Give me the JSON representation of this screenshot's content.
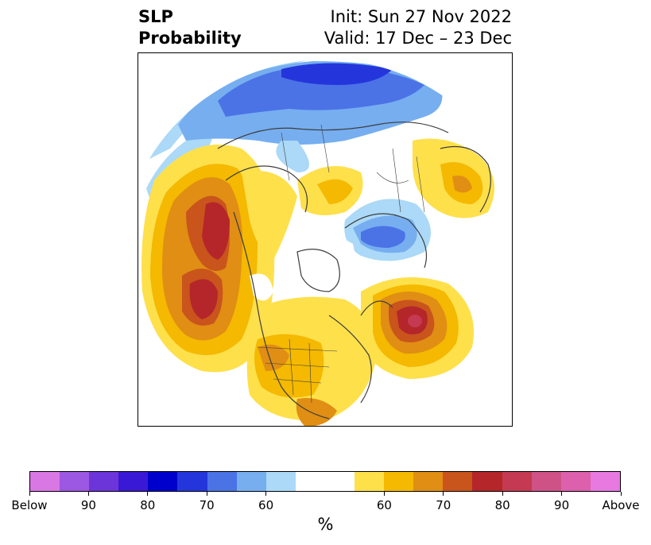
{
  "header": {
    "left_line1": "SLP",
    "left_line2": "Probability",
    "right_line1": "Init: Sun 27 Nov 2022",
    "right_line2": "Valid: 17 Dec – 23 Dec"
  },
  "colorbar": {
    "colors": [
      "#d977e5",
      "#9c58e2",
      "#6b35da",
      "#3a19d6",
      "#0000cc",
      "#2436db",
      "#4b73e6",
      "#76aef0",
      "#abd9f7",
      "#ffffff",
      "#ffffff",
      "#fee04b",
      "#f4b900",
      "#e08e14",
      "#c9541c",
      "#b4262a",
      "#c53a52",
      "#cf5286",
      "#dd60ac",
      "#e779e1"
    ],
    "tick_labels": [
      "Below",
      "90",
      "80",
      "70",
      "60",
      "60",
      "70",
      "80",
      "90",
      "Above"
    ],
    "label": "%"
  },
  "map": {
    "projection": "north-polar-stereographic",
    "field": "SLP probability",
    "colors": {
      "ocean_light_blue": "#abd9f7",
      "blue_60": "#76aef0",
      "blue_70": "#4b73e6",
      "blue_80": "#2436db",
      "yellow_60": "#fee04b",
      "yellow_65": "#f4b900",
      "orange_70": "#e08e14",
      "orange_75": "#c9541c",
      "red_80": "#b4262a",
      "pink_85": "#c53a52",
      "border_gray": "#3d3d3d"
    }
  }
}
